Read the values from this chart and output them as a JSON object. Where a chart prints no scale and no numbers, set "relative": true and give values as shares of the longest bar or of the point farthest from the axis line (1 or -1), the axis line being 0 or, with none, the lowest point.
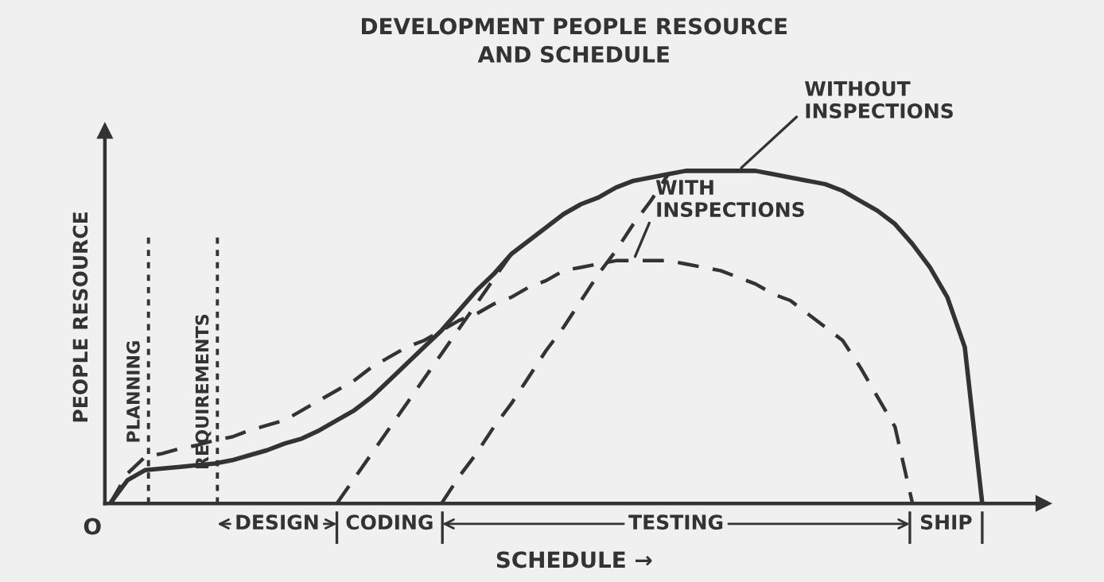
{
  "chart_data": {
    "type": "line",
    "title": "DEVELOPMENT PEOPLE RESOURCE\nAND SCHEDULE",
    "xlabel": "SCHEDULE →",
    "ylabel": "PEOPLE RESOURCE",
    "relative": true,
    "categories": [
      null,
      null,
      null,
      null,
      null,
      null,
      null,
      null,
      null,
      null,
      null,
      null,
      null,
      null,
      null,
      null,
      null,
      null,
      null,
      null,
      null,
      null,
      null,
      null,
      null,
      null,
      null,
      null,
      null,
      null,
      null,
      null,
      null,
      null,
      null,
      null,
      null,
      null,
      null,
      null,
      null,
      null,
      null,
      null,
      null,
      null,
      null,
      null,
      null,
      null,
      null
    ],
    "series": [
      {
        "name": "WITHOUT\nINSPECTIONS",
        "color": "#333333",
        "line_style": "solid",
        "values": [
          0,
          0.07,
          0.1,
          0.105,
          0.11,
          0.115,
          0.12,
          0.13,
          0.145,
          0.16,
          0.18,
          0.195,
          0.22,
          0.25,
          0.28,
          0.32,
          0.37,
          0.42,
          0.47,
          0.52,
          0.58,
          0.64,
          0.69,
          0.75,
          0.79,
          0.83,
          0.87,
          0.9,
          0.92,
          0.95,
          0.97,
          0.98,
          0.99,
          1.0,
          1.0,
          1.0,
          1.0,
          1.0,
          0.99,
          0.98,
          0.97,
          0.96,
          0.94,
          0.91,
          0.88,
          0.84,
          0.78,
          0.71,
          0.62,
          0.47,
          0
        ]
      },
      {
        "name": "WITH\nINSPECTIONS",
        "color": "#333333",
        "line_style": "dashed",
        "values": [
          0,
          0.09,
          0.14,
          0.15,
          0.165,
          0.175,
          0.19,
          0.2,
          0.22,
          0.235,
          0.25,
          0.28,
          0.31,
          0.34,
          0.37,
          0.41,
          0.44,
          0.47,
          0.49,
          0.52,
          0.55,
          0.57,
          0.6,
          0.62,
          0.65,
          0.67,
          0.7,
          0.71,
          0.72,
          0.73,
          0.73,
          0.73,
          0.73,
          0.72,
          0.71,
          0.7,
          0.68,
          0.66,
          0.63,
          0.61,
          0.57,
          0.53,
          0.49,
          0.41,
          0.32,
          0.23,
          0,
          null,
          null,
          null,
          null
        ]
      },
      {
        "color": "#333333",
        "line_style": "dashed",
        "values": [
          null,
          null,
          null,
          null,
          null,
          null,
          null,
          null,
          null,
          null,
          null,
          null,
          null,
          0,
          0.075,
          0.15,
          0.225,
          0.3,
          0.375,
          0.45,
          0.525,
          0.6,
          0.675,
          0.75,
          null,
          null,
          null,
          null,
          null,
          null,
          null,
          null,
          null,
          null,
          null,
          null,
          null,
          null,
          null,
          null,
          null,
          null,
          null,
          null,
          null,
          null,
          null,
          null,
          null,
          null,
          null
        ]
      },
      {
        "color": "#333333",
        "line_style": "dashed",
        "values": [
          null,
          null,
          null,
          null,
          null,
          null,
          null,
          null,
          null,
          null,
          null,
          null,
          null,
          null,
          null,
          null,
          null,
          null,
          null,
          0,
          0.08,
          0.15,
          0.23,
          0.3,
          0.38,
          0.46,
          0.53,
          0.61,
          0.69,
          0.76,
          0.84,
          0.91,
          0.99,
          null,
          null,
          null,
          null,
          null,
          null,
          null,
          null,
          null,
          null,
          null,
          null,
          null,
          null,
          null,
          null,
          null,
          null
        ]
      }
    ],
    "annotations": [
      "PLANNING",
      "REQUIREMENTS",
      "DESIGN",
      "CODING",
      "TESTING",
      "SHIP",
      "O"
    ]
  }
}
